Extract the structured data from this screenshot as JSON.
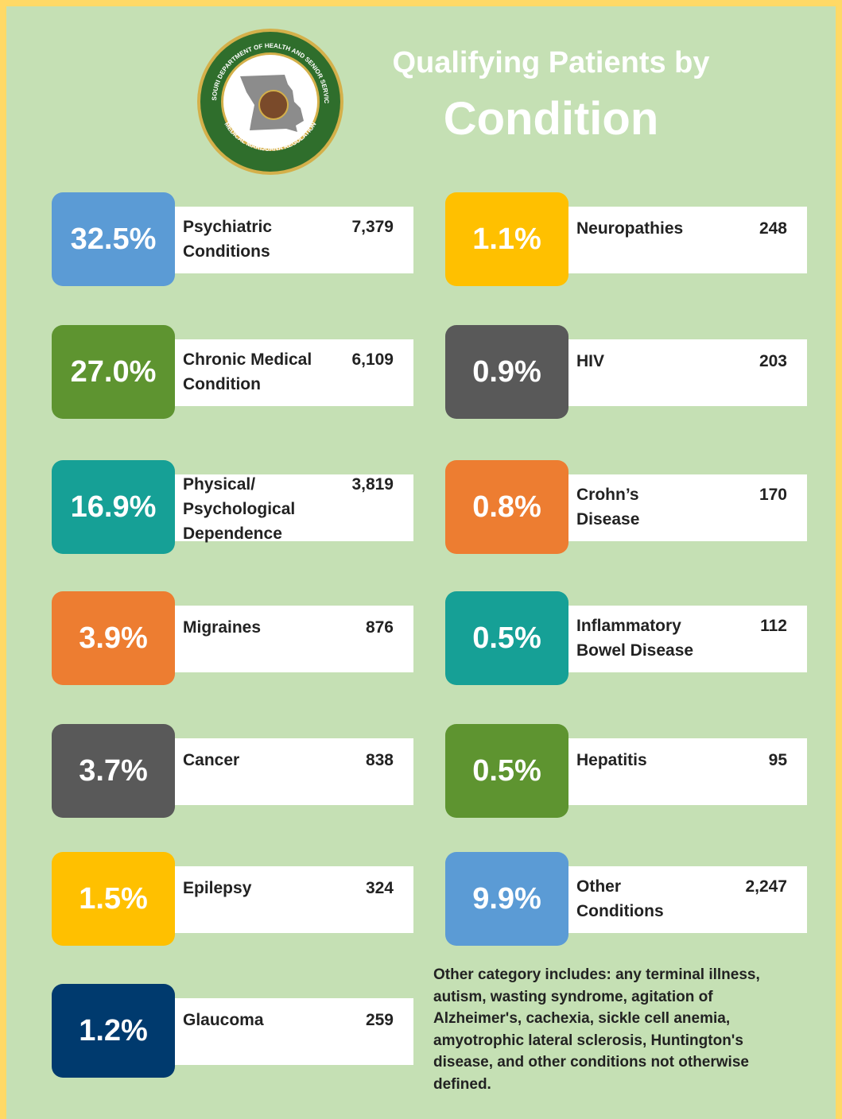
{
  "title": [
    "Qualifying Patients by",
    "Condition"
  ],
  "seal": {
    "top": "MISSOURI DEPARTMENT OF HEALTH AND SENIOR SERVICES",
    "bottom": "MEDICAL MARIJUANA REGULATION"
  },
  "left_column": [
    {
      "percent": "32.5%",
      "label": [
        "Psychiatric",
        "Conditions"
      ],
      "count": "7,379",
      "color": "#5b9bd5"
    },
    {
      "percent": "27.0%",
      "label": [
        "Chronic Medical",
        "Condition"
      ],
      "count": "6,109",
      "color": "#5e9430"
    },
    {
      "percent": "16.9%",
      "label": [
        "Physical/",
        "Psychological",
        "Dependence"
      ],
      "count": "3,819",
      "color": "#16a096"
    },
    {
      "percent": "3.9%",
      "label": [
        "Migraines"
      ],
      "count": "876",
      "color": "#ed7d31"
    },
    {
      "percent": "3.7%",
      "label": [
        "Cancer"
      ],
      "count": "838",
      "color": "#595959"
    },
    {
      "percent": "1.5%",
      "label": [
        "Epilepsy"
      ],
      "count": "324",
      "color": "#ffc000"
    },
    {
      "percent": "1.2%",
      "label": [
        "Glaucoma"
      ],
      "count": "259",
      "color": "#003a6e"
    }
  ],
  "right_column": [
    {
      "percent": "1.1%",
      "label": [
        "Neuropathies"
      ],
      "count": "248",
      "color": "#ffc000"
    },
    {
      "percent": "0.9%",
      "label": [
        "HIV"
      ],
      "count": "203",
      "color": "#595959"
    },
    {
      "percent": "0.8%",
      "label": [
        "Crohn’s",
        "Disease"
      ],
      "count": "170",
      "color": "#ed7d31"
    },
    {
      "percent": "0.5%",
      "label": [
        "Inflammatory",
        "Bowel Disease"
      ],
      "count": "112",
      "color": "#16a096"
    },
    {
      "percent": "0.5%",
      "label": [
        "Hepatitis"
      ],
      "count": "95",
      "color": "#5e9430"
    },
    {
      "percent": "9.9%",
      "label": [
        "Other",
        "Conditions"
      ],
      "count": "2,247",
      "color": "#5b9bd5"
    }
  ],
  "footnote": [
    "Other category includes: any terminal illness,",
    "autism, wasting syndrome, agitation of",
    "Alzheimer's, cachexia, sickle cell anemia,",
    "amyotrophic lateral sclerosis, Huntington's",
    "disease, and other conditions not otherwise",
    "defined."
  ]
}
